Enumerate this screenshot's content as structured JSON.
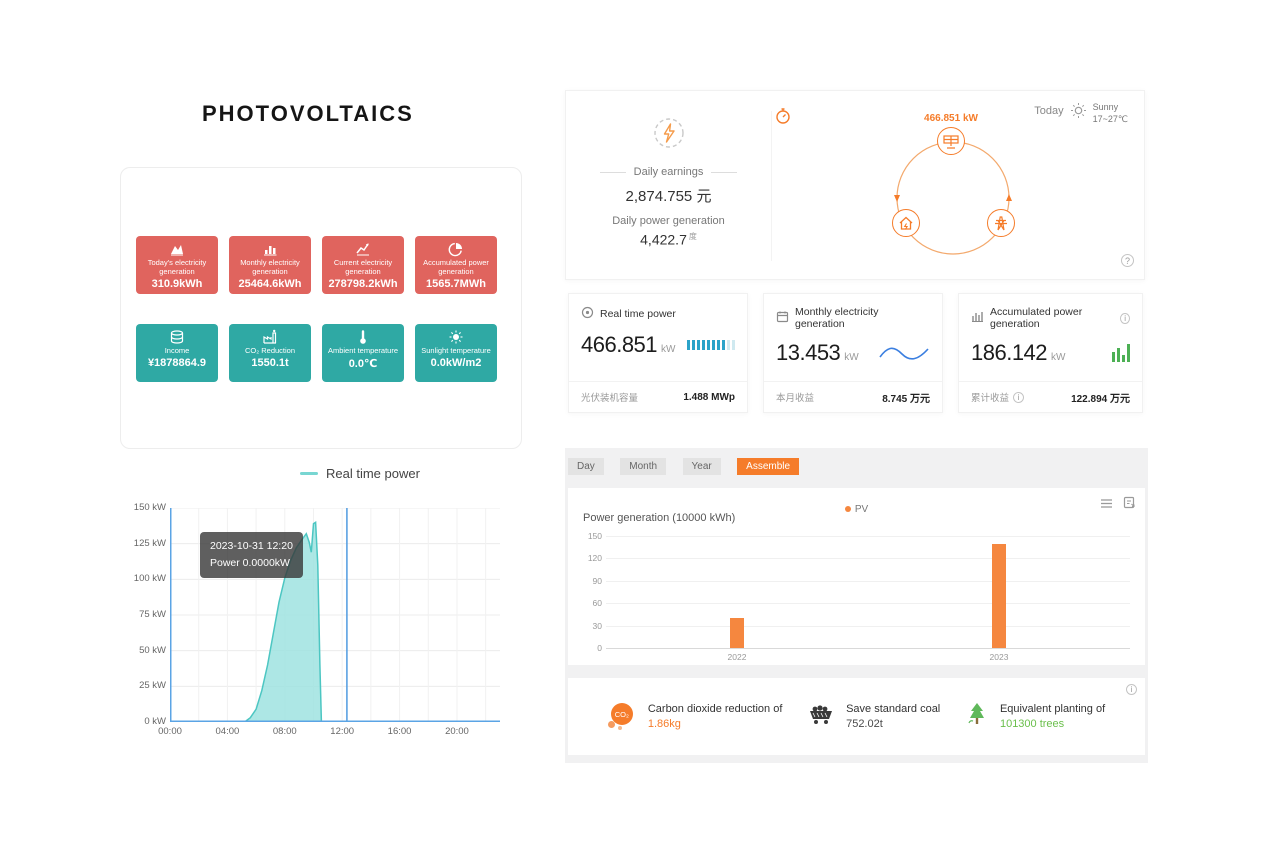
{
  "title": "PHOTOVOLTAICS",
  "left": {
    "tiles": [
      {
        "label": "Today's electricity generation",
        "value": "310.9kWh"
      },
      {
        "label": "Monthly electricity generation",
        "value": "25464.6kWh"
      },
      {
        "label": "Current electricity generation",
        "value": "278798.2kWh"
      },
      {
        "label": "Accumulated power generation",
        "value": "1565.7MWh"
      },
      {
        "label": "Income",
        "value": "¥1878864.9"
      },
      {
        "label": "CO₂ Reduction",
        "value": "1550.1t"
      },
      {
        "label": "Ambient temperature",
        "value": "0.0℃"
      },
      {
        "label": "Sunlight temperature",
        "value": "0.0kW/m2"
      }
    ],
    "legend_label": "Real time power",
    "chart": {
      "type": "area",
      "y_ticks": [
        "150 kW",
        "125 kW",
        "100 kW",
        "75 kW",
        "50 kW",
        "25 kW",
        "0 kW"
      ],
      "x_ticks": [
        "00:00",
        "04:00",
        "08:00",
        "12:00",
        "16:00",
        "20:00"
      ],
      "x_tick_hours": [
        0,
        4,
        8,
        12,
        16,
        20
      ],
      "x_max_hours": 23,
      "y_max": 150,
      "marker_hour": 12.33,
      "points": [
        [
          0,
          0
        ],
        [
          5.2,
          0
        ],
        [
          5.6,
          3
        ],
        [
          6,
          9
        ],
        [
          6.4,
          22
        ],
        [
          6.8,
          40
        ],
        [
          7.2,
          62
        ],
        [
          7.6,
          84
        ],
        [
          8,
          101
        ],
        [
          8.4,
          113
        ],
        [
          8.8,
          122
        ],
        [
          9.2,
          128
        ],
        [
          9.5,
          132
        ],
        [
          9.7,
          126
        ],
        [
          9.85,
          119
        ],
        [
          10,
          139
        ],
        [
          10.15,
          140
        ],
        [
          10.3,
          110
        ],
        [
          10.45,
          40
        ],
        [
          10.55,
          0
        ],
        [
          23,
          0
        ]
      ],
      "tooltip": {
        "line1": "2023-10-31 12:20",
        "line2": "Power 0.0000kW"
      },
      "colors": {
        "area": "#9fe3e0",
        "stroke": "#4cc6c2",
        "axis": "#5ba4e5",
        "marker": "#4f9be0"
      }
    }
  },
  "summary": {
    "daily_earnings_label": "Daily earnings",
    "daily_earnings_value": "2,874.755 元",
    "daily_generation_label": "Daily power generation",
    "daily_generation_value": "4,422.7",
    "daily_generation_unit": "度",
    "flow_power": "466.851 kW",
    "today_label": "Today",
    "weather_condition": "Sunny",
    "temp_range": "17~27℃",
    "help_label": "?"
  },
  "stat_cards": [
    {
      "title": "Real time power",
      "value": "466.851",
      "unit": "kW",
      "footer_label": "光伏装机容量",
      "footer_value": "1.488 MWp",
      "gauge": {
        "total": 10,
        "filled": 8
      }
    },
    {
      "title": "Monthly electricity generation",
      "value": "13.453",
      "unit": "kW",
      "footer_label": "本月收益",
      "footer_value": "8.745 万元"
    },
    {
      "title": "Accumulated power generation",
      "value": "186.142",
      "unit": "kW",
      "footer_label": "累计收益",
      "footer_value": "122.894 万元",
      "bars": [
        10,
        14,
        7,
        18
      ]
    }
  ],
  "generation_panel": {
    "tabs": [
      "Day",
      "Month",
      "Year",
      "Assemble"
    ],
    "active_tab": "Assemble",
    "chart": {
      "type": "bar",
      "title": "Power generation (10000 kWh)",
      "legend": "PV",
      "categories": [
        "2022",
        "2023"
      ],
      "values": [
        40,
        140
      ],
      "y_ticks": [
        0,
        30,
        60,
        90,
        120,
        150
      ],
      "y_max": 150,
      "bar_color": "#f5873f"
    }
  },
  "eco": {
    "items": [
      {
        "line1": "Carbon dioxide reduction of",
        "line2": "1.86kg",
        "color": "#f57c2a"
      },
      {
        "line1": "Save standard coal",
        "line2": "752.02t",
        "color": "#4a4a4a"
      },
      {
        "line1": "Equivalent planting of",
        "line2": "101300 trees",
        "color": "#6abf4b"
      }
    ]
  }
}
